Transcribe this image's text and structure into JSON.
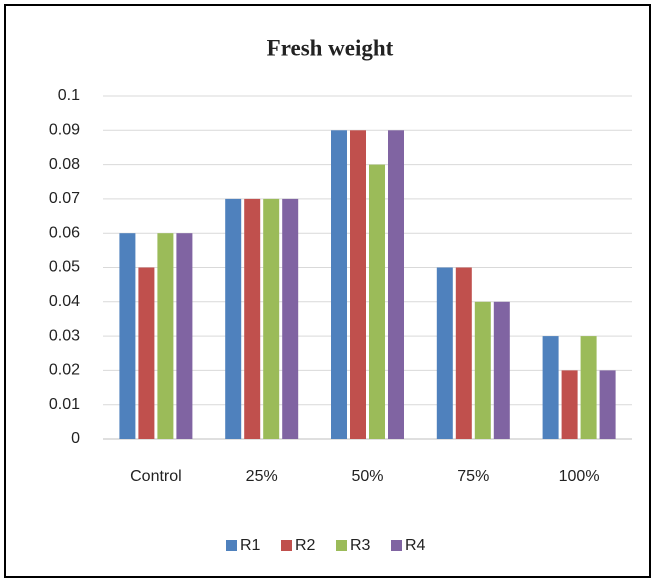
{
  "chart_data": {
    "type": "bar",
    "title": "Fresh weight",
    "categories": [
      "Control",
      "25%",
      "50%",
      "75%",
      "100%"
    ],
    "series": [
      {
        "name": "R1",
        "color": "#4f81bd",
        "values": [
          0.06,
          0.07,
          0.09,
          0.05,
          0.03
        ]
      },
      {
        "name": "R2",
        "color": "#c0504d",
        "values": [
          0.05,
          0.07,
          0.09,
          0.05,
          0.02
        ]
      },
      {
        "name": "R3",
        "color": "#9bbb59",
        "values": [
          0.06,
          0.07,
          0.08,
          0.04,
          0.03
        ]
      },
      {
        "name": "R4",
        "color": "#8064a2",
        "values": [
          0.06,
          0.07,
          0.09,
          0.04,
          0.02
        ]
      }
    ],
    "ylim": [
      0,
      0.1
    ],
    "yticks": [
      0,
      0.01,
      0.02,
      0.03,
      0.04,
      0.05,
      0.06,
      0.07,
      0.08,
      0.09,
      0.1
    ],
    "grid": true,
    "legend": "bottom"
  }
}
